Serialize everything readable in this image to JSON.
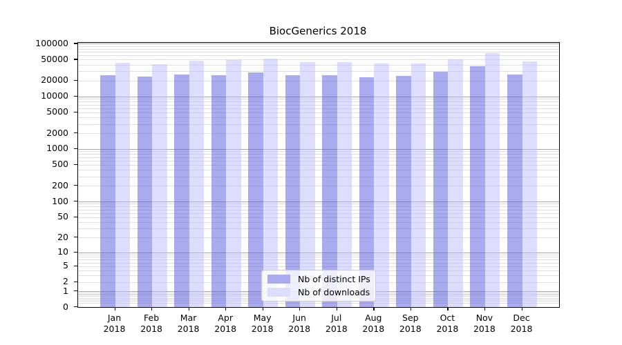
{
  "title": "BiocGenerics 2018",
  "legend": {
    "items": [
      {
        "label": "Nb of distinct IPs",
        "color": "#aaaaee"
      },
      {
        "label": "Nb of downloads",
        "color": "#ddddff"
      }
    ]
  },
  "colors": {
    "ips_fill": "rgba(85,85,221,0.5)",
    "downloads_fill": "rgba(187,187,255,0.5)",
    "ips_solid": "#aaaaee",
    "downloads_solid": "#ddddff",
    "grid_major": "#a6a6a6",
    "grid_minor": "#dedede",
    "spine": "#000000"
  },
  "axis": {
    "x_months": [
      "Jan",
      "Feb",
      "Mar",
      "Apr",
      "May",
      "Jun",
      "Jul",
      "Aug",
      "Sep",
      "Oct",
      "Nov",
      "Dec"
    ],
    "x_year": "2018",
    "y_tick_values": [
      0,
      1,
      2,
      5,
      10,
      20,
      50,
      100,
      200,
      500,
      1000,
      2000,
      5000,
      10000,
      20000,
      50000,
      100000
    ],
    "y_tick_labels": [
      "0",
      "1",
      "2",
      "5",
      "10",
      "20",
      "50",
      "100",
      "200",
      "500",
      "1000",
      "2000",
      "5000",
      "10000",
      "20000",
      "50000",
      "100000"
    ]
  },
  "chart_data": {
    "type": "bar",
    "title": "BiocGenerics 2018",
    "categories": [
      "Jan 2018",
      "Feb 2018",
      "Mar 2018",
      "Apr 2018",
      "May 2018",
      "Jun 2018",
      "Jul 2018",
      "Aug 2018",
      "Sep 2018",
      "Oct 2018",
      "Nov 2018",
      "Dec 2018"
    ],
    "series": [
      {
        "name": "Nb of distinct IPs",
        "values": [
          25400,
          23900,
          26200,
          25400,
          28700,
          25400,
          25000,
          23400,
          24400,
          29000,
          37600,
          26200
        ]
      },
      {
        "name": "Nb of downloads",
        "values": [
          43000,
          40800,
          47900,
          48900,
          52400,
          44700,
          45300,
          42000,
          42000,
          51000,
          65500,
          45600
        ]
      }
    ],
    "xlabel": "",
    "ylabel": "",
    "yscale": "log1p",
    "ylim": [
      0,
      104000
    ],
    "yticks": [
      0,
      1,
      2,
      5,
      10,
      20,
      50,
      100,
      200,
      500,
      1000,
      2000,
      5000,
      10000,
      20000,
      50000,
      100000
    ],
    "grid": true,
    "legend_position": "inside lower center"
  }
}
